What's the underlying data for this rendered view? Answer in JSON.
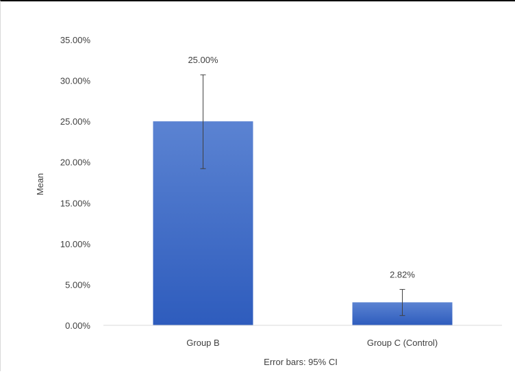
{
  "chart_data": {
    "type": "bar",
    "title": "",
    "xlabel": "",
    "ylabel": "Mean",
    "categories": [
      "Group B",
      "Group C (Control)"
    ],
    "values": [
      25.0,
      2.82
    ],
    "data_labels": [
      "25.00%",
      "2.82%"
    ],
    "error_bars": {
      "lower": [
        19.2,
        1.2
      ],
      "upper": [
        30.7,
        4.4
      ]
    },
    "ylim": [
      0,
      35
    ],
    "yticks": [
      0,
      5,
      10,
      15,
      20,
      25,
      30,
      35
    ],
    "ytick_labels": [
      "0.00%",
      "5.00%",
      "10.00%",
      "15.00%",
      "20.00%",
      "25.00%",
      "30.00%",
      "35.00%"
    ],
    "grid": false,
    "legend": "none",
    "footnote": "Error bars: 95% CI"
  },
  "colors": {
    "bar_top": "#5b83d2",
    "bar_bottom": "#2e5cbd",
    "axis": "#d9d9d9",
    "text": "#404040",
    "error_bar": "#404040"
  }
}
